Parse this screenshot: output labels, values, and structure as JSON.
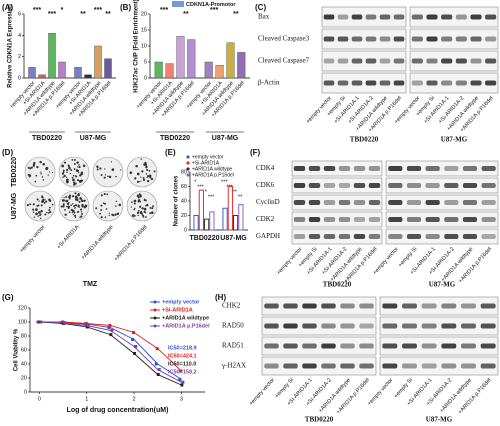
{
  "chart_data": [
    {
      "type": "bar",
      "label": "(A)",
      "y_label": "Relative CDKN1A Expression",
      "categories": [
        "+empty vector",
        "+Si-ARID1A",
        "+ARID1A wildtype",
        "+ARID1A p.P16del",
        "+empty vector",
        "+Si-ARID1A",
        "+ARID1A wildtype",
        "+ARID1A p.P16del"
      ],
      "groups": [
        "TBD0220",
        "U87-MG"
      ],
      "values": [
        1.0,
        0.3,
        4.2,
        1.5,
        1.0,
        0.3,
        3.0,
        1.8
      ],
      "colors": [
        "#7b7fc4",
        "#e25a5a",
        "#5cb85c",
        "#b57fc9",
        "#7b7fc4",
        "#333333",
        "#d8a060",
        "#6a5a9a"
      ],
      "ylim": [
        0,
        6
      ],
      "yticks": [
        0,
        2,
        4,
        6
      ],
      "annotations": [
        "***",
        "***",
        "*",
        "**",
        "***",
        "**"
      ]
    },
    {
      "type": "bar",
      "label": "(B)",
      "y_label": "H3K27ac ChIP (Fold Enrichment)",
      "legend_label": "CDKN1A-Promotor",
      "legend_color": "#6f9be0",
      "categories": [
        "+empty vector",
        "+Si-ARID1A",
        "+ARID1A wildtype",
        "+ARID1A p.P16del",
        "+empty vector",
        "+Si-ARID1A",
        "+ARID1A wildtype",
        "+ARID1A p.P16del"
      ],
      "groups": [
        "TBD0220",
        "U87-MG"
      ],
      "values": [
        5,
        4.5,
        13,
        12,
        5,
        4,
        11,
        8
      ],
      "colors": [
        "#5cb85c",
        "#f08070",
        "#c9a0dc",
        "#b090d0",
        "#a080c0",
        "#f0a070",
        "#c8b040",
        "#9070b0"
      ],
      "ylim": [
        0,
        20
      ],
      "yticks": [
        0,
        5,
        10,
        15,
        20
      ],
      "annotations": [
        "***",
        "**",
        "***",
        "**"
      ]
    },
    {
      "type": "bar",
      "label": "(E)",
      "y_label": "Number of clones",
      "categories": [
        "TBD0220",
        "U87-MG"
      ],
      "series": [
        {
          "name": "+empty vector",
          "color": "#3a5fcd",
          "values": [
            20,
            30
          ]
        },
        {
          "name": "+Si-ARID1A",
          "color": "#e03030",
          "values": [
            55,
            60
          ]
        },
        {
          "name": "+ARID1A wildtype",
          "color": "#333333",
          "values": [
            15,
            20
          ]
        },
        {
          "name": "+ARID1A p.P16del",
          "color": "#9a5fc0",
          "values": [
            25,
            35
          ]
        }
      ],
      "ylim": [
        0,
        80
      ],
      "yticks": [
        0,
        20,
        40,
        60,
        80
      ],
      "annotations": [
        "*",
        "***",
        "*",
        "***",
        "***",
        "***",
        "**",
        "**"
      ]
    },
    {
      "type": "line",
      "label": "(G)",
      "x_label": "Log of drug concentration(uM)",
      "y_label": "Cell Viability %",
      "x": [
        0,
        0.5,
        1,
        1.5,
        2,
        2.5,
        3
      ],
      "series": [
        {
          "name": "+empty vector",
          "color": "#2f50d0",
          "values": [
            100,
            99,
            97,
            92,
            75,
            40,
            18
          ],
          "ic50_label": "IC50=218.9"
        },
        {
          "name": "+Si-ARID1A",
          "color": "#e02020",
          "values": [
            100,
            100,
            98,
            95,
            85,
            62,
            30
          ],
          "ic50_label": "IC50=424.1"
        },
        {
          "name": "+ARID1A wildtype",
          "color": "#222222",
          "values": [
            100,
            98,
            93,
            82,
            55,
            25,
            10
          ],
          "ic50_label": "IC50=110.0"
        },
        {
          "name": "+ARID1A p.P16del",
          "color": "#7a3fa8",
          "values": [
            100,
            99,
            95,
            88,
            65,
            32,
            14
          ],
          "ic50_label": "IC50=158.2"
        }
      ],
      "xlim": [
        -0.2,
        3.5
      ],
      "xticks": [
        0,
        1,
        2,
        3
      ],
      "ylim": [
        0,
        120
      ],
      "yticks": [
        0,
        20,
        40,
        60,
        80,
        100,
        120
      ]
    }
  ],
  "colony": {
    "label": "(D)",
    "rows": [
      "TBD0220",
      "U87-MG"
    ],
    "lanes": [
      "+empty vector",
      "+Si-ARID1A",
      "+ARID1A wildtype",
      "+ARID1A p.P16del"
    ],
    "treatment": "TMZ"
  },
  "blots": [
    {
      "label": "(C)",
      "rows": [
        "Bax",
        "Cleaved Caspase3",
        "Cleaved Caspase7",
        "β-Actin"
      ],
      "lanes": [
        "+empty vector",
        "+empty Si",
        "+Si-ARID1A-1",
        "+Si-ARID1A-2",
        "+ARID1A wildtype",
        "+ARID1A p.P16del",
        "+empty vector",
        "+empty Si",
        "+Si-ARID1A-1",
        "+Si-ARID1A-2",
        "+ARID1A wildtype",
        "+ARID1A p.P16del"
      ],
      "groups": [
        "TBD0220",
        "U87-MG"
      ]
    },
    {
      "label": "(F)",
      "rows": [
        "CDK4",
        "CDK6",
        "CyclinD",
        "CDK2",
        "GAPDH"
      ],
      "lanes": [
        "+empty vector",
        "+empty Si",
        "+Si-ARID1A-1",
        "+Si-ARID1A-2",
        "+ARID1A wildtype",
        "+ARID1A p.P16del",
        "+empty vector",
        "+empty Si",
        "+Si-ARID1A-1",
        "+Si-ARID1A-2",
        "+ARID1A wildtype",
        "+ARID1A p.P16del"
      ],
      "groups": [
        "TBD0220",
        "U87-MG"
      ]
    },
    {
      "label": "(H)",
      "rows": [
        "CHK2",
        "RAD50",
        "RAD51",
        "γ-H2AX"
      ],
      "lanes": [
        "+empty vector",
        "+empty Si",
        "+Si-ARID1A-1",
        "+Si-ARID1A-2",
        "+ARID1A wildtype",
        "+ARID1A p.P16del",
        "+empty vector",
        "+empty Si",
        "+Si-ARID1A-1",
        "+Si-ARID1A-2",
        "+ARID1A wildtype",
        "+ARID1A p.P16del"
      ],
      "groups": [
        "TBD0220",
        "U87-MG"
      ]
    }
  ]
}
